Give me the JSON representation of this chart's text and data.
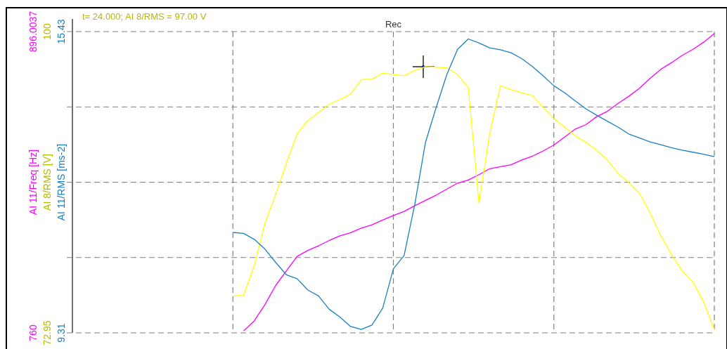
{
  "chart_data": {
    "type": "line",
    "annotations": [
      "t= 24.000; AI 8/RMS = 97.00 V",
      "Rec"
    ],
    "ylabel": "AI 11/Freq [Hz]",
    "y2label": "AI 8/RMS [V]",
    "y3label": "AI 11/RMS [ms-2]",
    "categories": [
      null,
      null,
      null,
      null,
      null,
      null,
      null,
      null,
      null,
      null,
      null,
      null,
      null,
      null,
      null,
      null,
      null,
      null,
      null,
      null,
      null,
      null,
      null,
      null,
      null,
      null,
      null,
      null,
      null,
      null,
      null,
      null,
      null,
      null,
      null,
      null,
      null,
      null,
      null,
      null,
      null,
      null,
      null,
      null,
      null,
      null,
      null,
      null,
      null,
      null,
      null,
      null,
      null,
      null,
      null,
      null,
      null,
      null,
      null,
      null,
      null
    ],
    "ylim": [
      760,
      896.0037
    ],
    "yticks": [
      760,
      {
        "value": 794.0009,
        "label": null
      },
      {
        "value": 828.0019,
        "label": null
      },
      {
        "value": 862.0028,
        "label": null
      },
      896.0037
    ],
    "y2lim": [
      72.95,
      100
    ],
    "y2ticks": [
      72.95,
      100
    ],
    "y3lim": [
      9.31,
      15.43
    ],
    "y3ticks": [
      9.31,
      15.43
    ],
    "grid": true,
    "tick_labels": "y",
    "line_style": "solid",
    "marker": "none",
    "series": [
      {
        "color": "#ff00ff",
        "axis": "y",
        "values": [
          null,
          null,
          null,
          null,
          null,
          null,
          null,
          null,
          null,
          null,
          null,
          null,
          null,
          null,
          null,
          null,
          760.9,
          765.4,
          772.8,
          781.4,
          788.0,
          794.5,
          797.2,
          799.3,
          801.7,
          803.8,
          805.2,
          807.3,
          808.8,
          810.9,
          813.0,
          814.8,
          817.4,
          819.8,
          822.2,
          824.9,
          827.6,
          829.0,
          831.4,
          834.1,
          835.0,
          835.9,
          838.0,
          839.8,
          842.1,
          844.8,
          848.4,
          852.0,
          854.0,
          857.6,
          860.0,
          863.6,
          866.8,
          870.4,
          874.9,
          879.0,
          882.0,
          885.3,
          888.0,
          891.2,
          895.1
        ]
      },
      {
        "color": "#ffff00",
        "axis": "y2",
        "values": [
          null,
          null,
          null,
          null,
          null,
          null,
          null,
          null,
          null,
          null,
          null,
          null,
          null,
          null,
          null,
          76.26,
          76.32,
          78.99,
          82.83,
          85.38,
          88.16,
          90.83,
          92.01,
          92.72,
          93.49,
          93.9,
          94.38,
          95.68,
          95.74,
          96.27,
          96.15,
          96.03,
          96.51,
          96.86,
          96.8,
          96.74,
          96.15,
          94.97,
          84.61,
          90.83,
          95.15,
          94.79,
          94.5,
          94.26,
          93.19,
          92.19,
          91.42,
          90.65,
          90.06,
          89.35,
          88.46,
          87.27,
          86.45,
          85.5,
          83.72,
          81.65,
          79.99,
          78.51,
          77.51,
          75.73,
          73.25
        ]
      },
      {
        "color": "#1a80c0",
        "axis": "y3",
        "values": [
          null,
          null,
          null,
          null,
          null,
          null,
          null,
          null,
          null,
          null,
          null,
          null,
          null,
          null,
          null,
          11.35,
          11.33,
          11.21,
          11.01,
          10.74,
          10.49,
          10.41,
          10.18,
          10.06,
          9.79,
          9.63,
          9.44,
          9.38,
          9.47,
          9.81,
          10.61,
          10.88,
          11.92,
          13.18,
          13.89,
          14.56,
          15.07,
          15.28,
          15.2,
          15.1,
          15.06,
          15.0,
          14.88,
          14.72,
          14.53,
          14.33,
          14.19,
          14.02,
          13.86,
          13.73,
          13.61,
          13.49,
          13.35,
          13.27,
          13.19,
          13.13,
          13.07,
          13.02,
          12.98,
          12.94,
          12.89
        ]
      }
    ]
  }
}
